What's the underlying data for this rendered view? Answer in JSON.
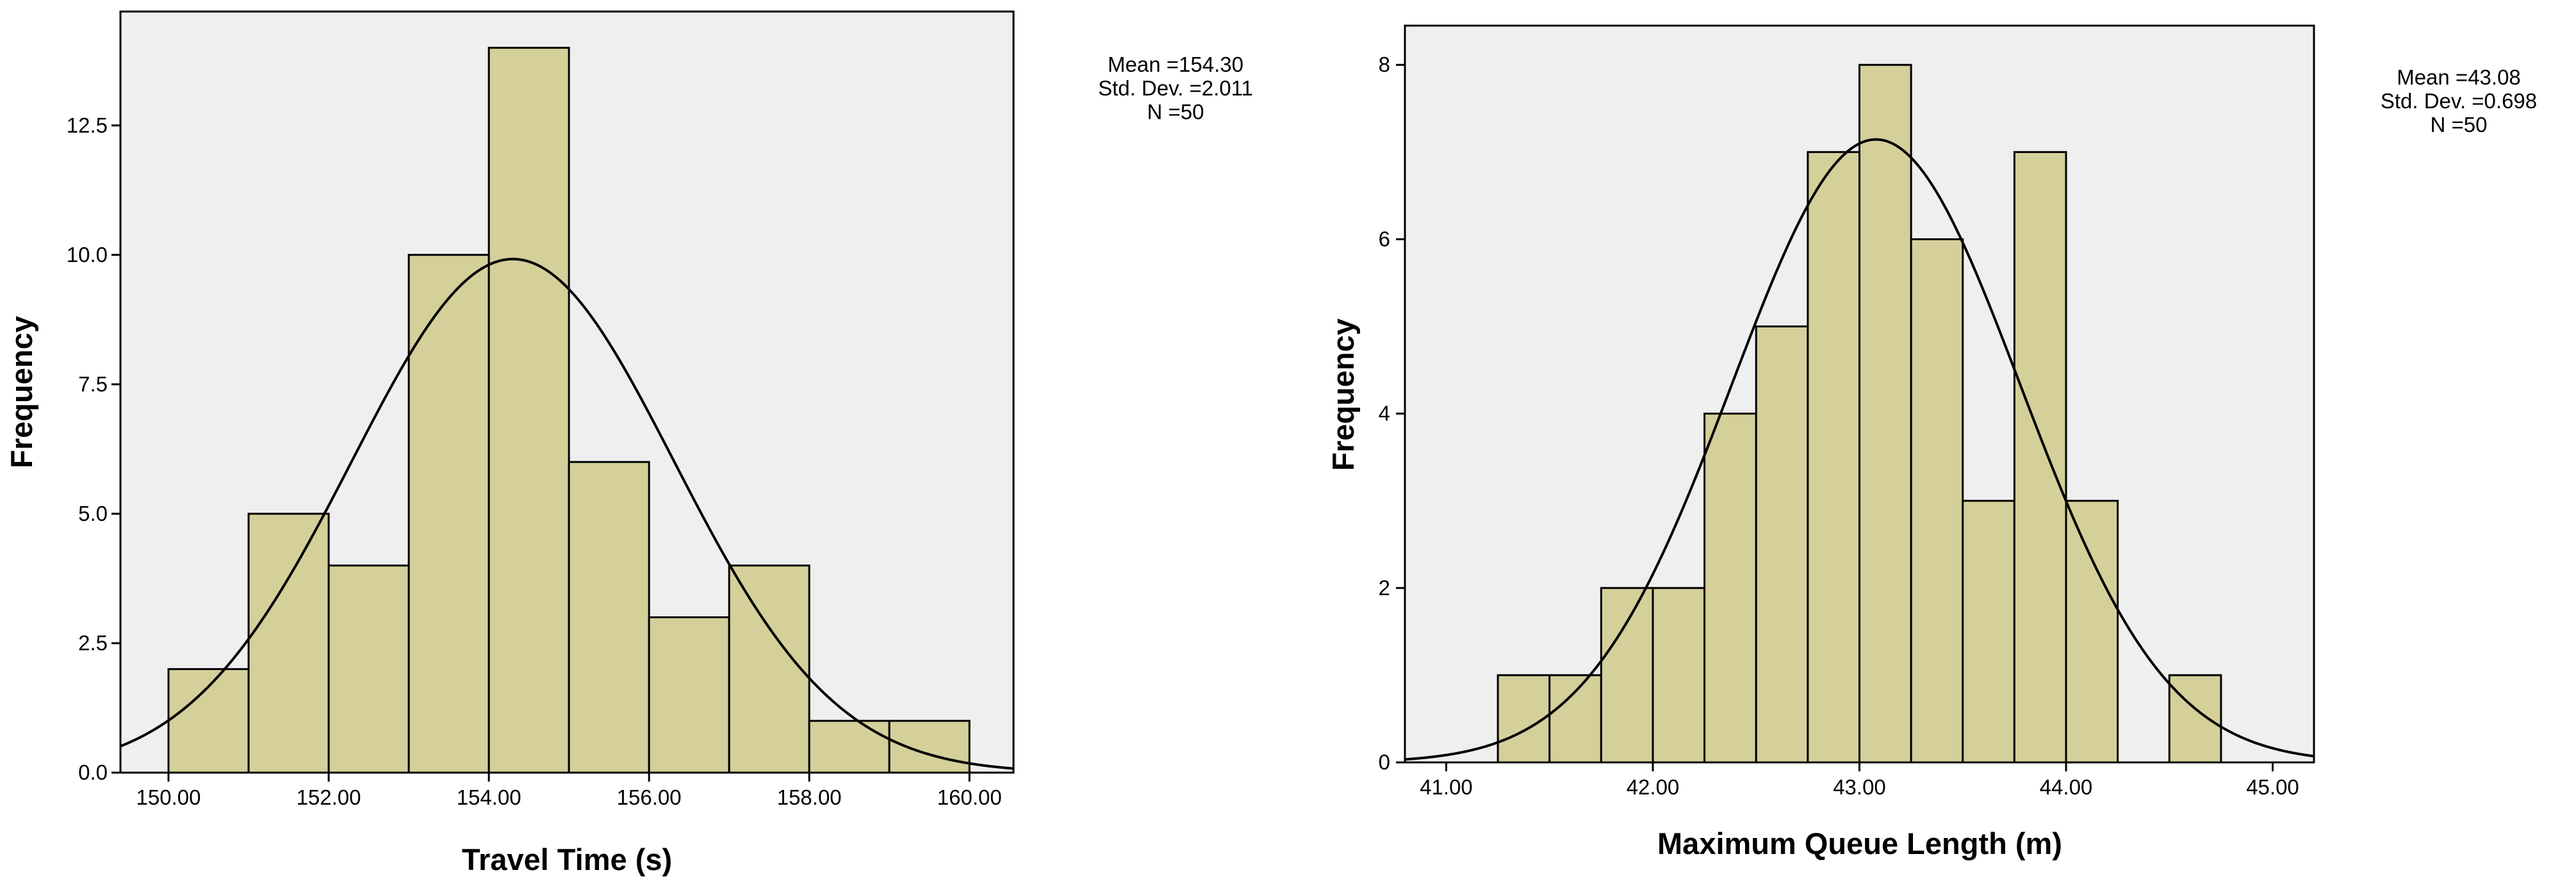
{
  "chart_data": [
    {
      "type": "histogram",
      "xlabel": "Travel Time (s)",
      "ylabel": "Frequency",
      "xlim": [
        149.4,
        160.55
      ],
      "ylim": [
        0,
        14.7
      ],
      "x_ticks": [
        150,
        152,
        154,
        156,
        158,
        160
      ],
      "x_tick_labels": [
        "150.00",
        "152.00",
        "154.00",
        "156.00",
        "158.00",
        "160.00"
      ],
      "y_ticks": [
        0,
        2.5,
        5,
        7.5,
        10,
        12.5
      ],
      "y_tick_labels": [
        "0.0",
        "2.5",
        "5.0",
        "7.5",
        "10.0",
        "12.5"
      ],
      "bins": [
        {
          "start": 150,
          "end": 151,
          "count": 2
        },
        {
          "start": 151,
          "end": 152,
          "count": 5
        },
        {
          "start": 152,
          "end": 153,
          "count": 4
        },
        {
          "start": 153,
          "end": 154,
          "count": 10
        },
        {
          "start": 154,
          "end": 155,
          "count": 14
        },
        {
          "start": 155,
          "end": 156,
          "count": 6
        },
        {
          "start": 156,
          "end": 157,
          "count": 3
        },
        {
          "start": 157,
          "end": 158,
          "count": 4
        },
        {
          "start": 158,
          "end": 159,
          "count": 1
        },
        {
          "start": 159,
          "end": 160,
          "count": 1
        }
      ],
      "normal_curve": {
        "mean": 154.3,
        "std": 2.011,
        "n": 50,
        "bin_width": 1.0
      },
      "stats_text": [
        "Mean =154.30",
        "Std. Dev. =2.011",
        "N =50"
      ],
      "bar_color": "#d5d09a",
      "plot_background": "#efefef",
      "grid": false
    },
    {
      "type": "histogram",
      "xlabel": "Maximum Queue Length (m)",
      "ylabel": "Frequency",
      "xlim": [
        40.8,
        45.2
      ],
      "ylim": [
        0,
        8.45
      ],
      "x_ticks": [
        41,
        42,
        43,
        44,
        45
      ],
      "x_tick_labels": [
        "41.00",
        "42.00",
        "43.00",
        "44.00",
        "45.00"
      ],
      "y_ticks": [
        0,
        2,
        4,
        6,
        8
      ],
      "y_tick_labels": [
        "0",
        "2",
        "4",
        "6",
        "8"
      ],
      "bins": [
        {
          "start": 41.25,
          "end": 41.5,
          "count": 1
        },
        {
          "start": 41.5,
          "end": 41.75,
          "count": 1
        },
        {
          "start": 41.75,
          "end": 42.0,
          "count": 2
        },
        {
          "start": 42.0,
          "end": 42.25,
          "count": 2
        },
        {
          "start": 42.25,
          "end": 42.5,
          "count": 4
        },
        {
          "start": 42.5,
          "end": 42.75,
          "count": 5
        },
        {
          "start": 42.75,
          "end": 43.0,
          "count": 7
        },
        {
          "start": 43.0,
          "end": 43.25,
          "count": 8
        },
        {
          "start": 43.25,
          "end": 43.5,
          "count": 6
        },
        {
          "start": 43.5,
          "end": 43.75,
          "count": 3
        },
        {
          "start": 43.75,
          "end": 44.0,
          "count": 7
        },
        {
          "start": 44.0,
          "end": 44.25,
          "count": 3
        },
        {
          "start": 44.5,
          "end": 44.75,
          "count": 1
        }
      ],
      "normal_curve": {
        "mean": 43.08,
        "std": 0.698,
        "n": 50,
        "bin_width": 0.25
      },
      "stats_text": [
        "Mean =43.08",
        "Std. Dev. =0.698",
        "N =50"
      ],
      "bar_color": "#d5d09a",
      "plot_background": "#efefef",
      "grid": false
    }
  ]
}
